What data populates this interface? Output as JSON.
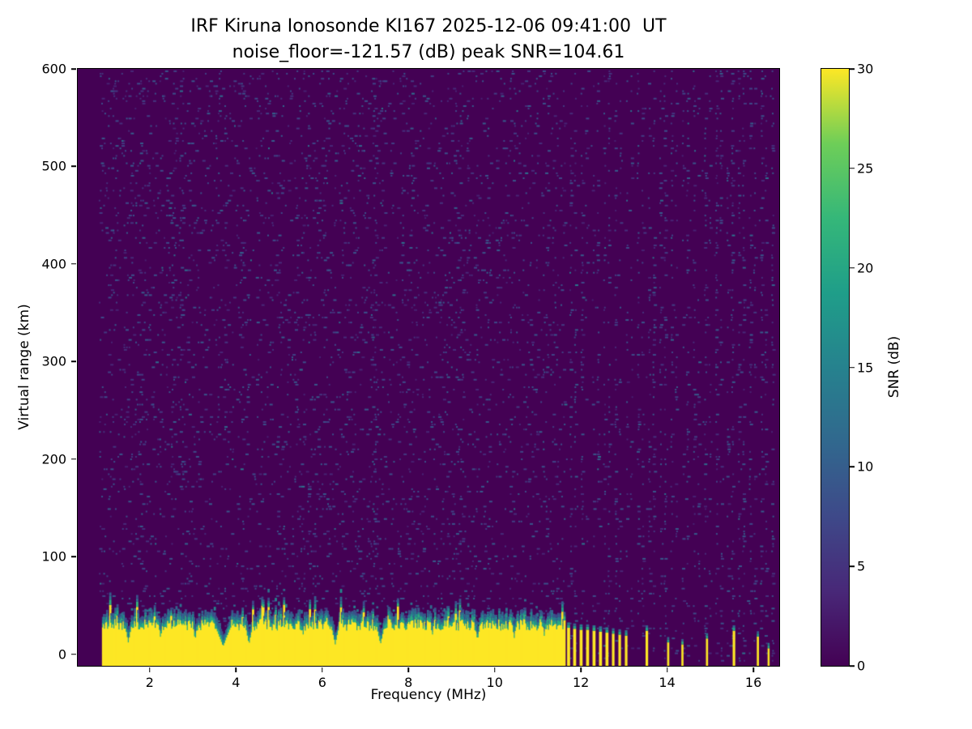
{
  "chart_data": {
    "type": "heatmap",
    "title": "IRF Kiruna Ionosonde KI167 2025-12-06 09:41:00  UT",
    "subtitle": "noise_floor=-121.57 (dB) peak SNR=104.61",
    "xlabel": "Frequency (MHz)",
    "ylabel": "Virtual range (km)",
    "xlim": [
      0.33,
      16.6
    ],
    "ylim": [
      -12,
      600
    ],
    "xticks": [
      2,
      4,
      6,
      8,
      10,
      12,
      14,
      16
    ],
    "yticks": [
      0,
      100,
      200,
      300,
      400,
      500,
      600
    ],
    "noise_floor_db": -121.57,
    "peak_snr_db": 104.61,
    "colorbar": {
      "label": "SNR (dB)",
      "min": 0,
      "max": 30,
      "ticks": [
        0,
        5,
        10,
        15,
        20,
        25,
        30
      ],
      "colormap": "viridis"
    },
    "features": {
      "data_freq_range": [
        0.85,
        16.45
      ],
      "background_snr_db": 0,
      "speckle_noise_db_range": [
        3,
        12
      ],
      "noisy_columns_mhz": [
        2.75,
        7.2
      ],
      "rfi_comb_start_mhz": 11.62,
      "rfi_column_spacing_mhz": 0.13,
      "ground_echo_band": {
        "freq_start": 0.9,
        "freq_end": 11.62,
        "top_km_mean": 30,
        "fringe_km": 12,
        "notches": [
          {
            "freq": 1.5,
            "width": 0.08,
            "depth_km": 12
          },
          {
            "freq": 2.25,
            "width": 0.06,
            "depth_km": 16
          },
          {
            "freq": 3.05,
            "width": 0.06,
            "depth_km": 14
          },
          {
            "freq": 3.7,
            "width": 0.16,
            "depth_km": 8
          },
          {
            "freq": 4.3,
            "width": 0.08,
            "depth_km": 10
          },
          {
            "freq": 5.55,
            "width": 0.05,
            "depth_km": 18
          },
          {
            "freq": 6.3,
            "width": 0.09,
            "depth_km": 10
          },
          {
            "freq": 7.35,
            "width": 0.09,
            "depth_km": 10
          },
          {
            "freq": 8.55,
            "width": 0.05,
            "depth_km": 18
          },
          {
            "freq": 9.6,
            "width": 0.07,
            "depth_km": 14
          },
          {
            "freq": 10.45,
            "width": 0.06,
            "depth_km": 16
          },
          {
            "freq": 11.15,
            "width": 0.05,
            "depth_km": 18
          }
        ]
      },
      "pulses": [
        {
          "freq": 11.68,
          "height_km": 27,
          "width": 0.07
        },
        {
          "freq": 11.82,
          "height_km": 26,
          "width": 0.07
        },
        {
          "freq": 11.97,
          "height_km": 25,
          "width": 0.07
        },
        {
          "freq": 12.12,
          "height_km": 25,
          "width": 0.07
        },
        {
          "freq": 12.27,
          "height_km": 24,
          "width": 0.07
        },
        {
          "freq": 12.42,
          "height_km": 23,
          "width": 0.07
        },
        {
          "freq": 12.57,
          "height_km": 22,
          "width": 0.07
        },
        {
          "freq": 12.72,
          "height_km": 21,
          "width": 0.06
        },
        {
          "freq": 12.87,
          "height_km": 20,
          "width": 0.06
        },
        {
          "freq": 13.02,
          "height_km": 19,
          "width": 0.06
        },
        {
          "freq": 13.5,
          "height_km": 24,
          "width": 0.06
        },
        {
          "freq": 14.0,
          "height_km": 12,
          "width": 0.05
        },
        {
          "freq": 14.33,
          "height_km": 10,
          "width": 0.05
        },
        {
          "freq": 14.9,
          "height_km": 16,
          "width": 0.05
        },
        {
          "freq": 15.52,
          "height_km": 24,
          "width": 0.06
        },
        {
          "freq": 16.08,
          "height_km": 18,
          "width": 0.05
        },
        {
          "freq": 16.33,
          "height_km": 6,
          "width": 0.04
        }
      ]
    }
  }
}
